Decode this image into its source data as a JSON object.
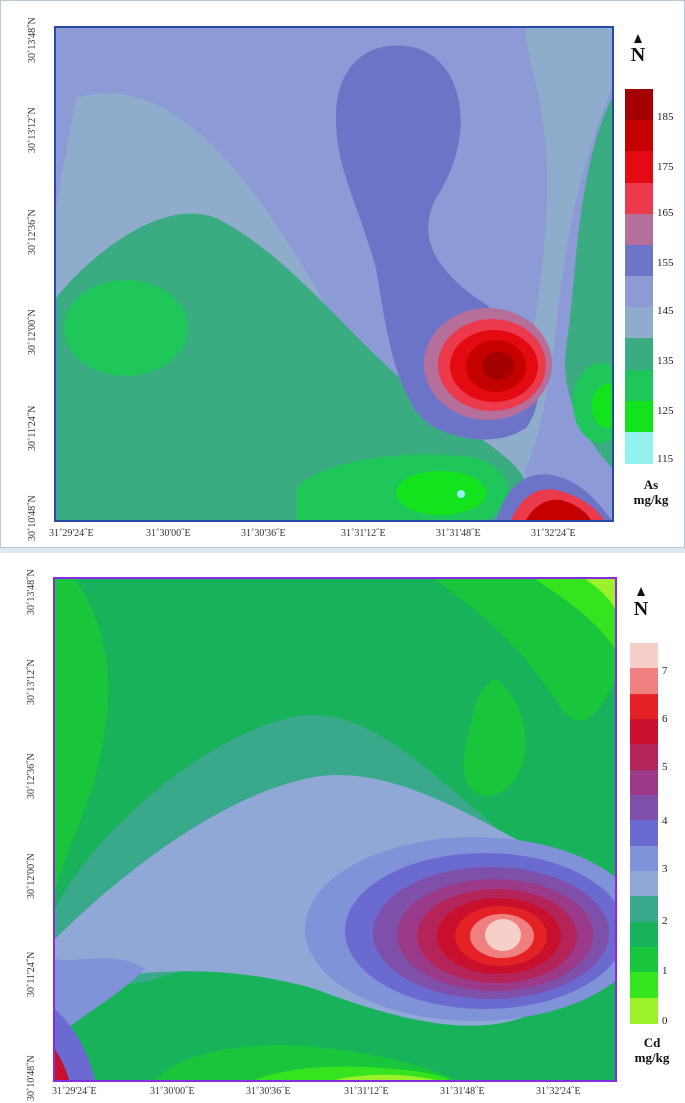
{
  "maps": [
    {
      "element": "As",
      "unit": "mg/kg",
      "north_label": "N",
      "legend_values": [
        "185",
        "175",
        "165",
        "155",
        "145",
        "135",
        "125",
        "115"
      ],
      "legend_colors": [
        "#a50000",
        "#c40000",
        "#e30a12",
        "#ea3a4b",
        "#b66f9a",
        "#6c74c8",
        "#8c9bd6",
        "#8faccc",
        "#3bab82",
        "#1fc65a",
        "#13e31d",
        "#94f3ee"
      ],
      "x_labels": [
        "31˚29'24˝E",
        "31˚30'00˝E",
        "31˚30'36˝E",
        "31˚31'12˝E",
        "31˚31'48˝E",
        "31˚32'24˝E"
      ],
      "y_labels": [
        "30˚13'48˝N",
        "30˚13'12˝N",
        "30˚12'36˝N",
        "30˚12'00˝N",
        "30˚11'24˝N",
        "30˚10'48˝N"
      ]
    },
    {
      "element": "Cd",
      "unit": "mg/kg",
      "north_label": "N",
      "legend_values": [
        "7",
        "6",
        "5",
        "4",
        "3",
        "2",
        "1",
        "0"
      ],
      "legend_colors": [
        "#f6cfc9",
        "#f08080",
        "#e42125",
        "#c8102e",
        "#b42458",
        "#9b3a88",
        "#7e50aa",
        "#6a6ad0",
        "#8092d8",
        "#8fa8d5",
        "#3aa88a",
        "#18b25b",
        "#19c53a",
        "#35e31e",
        "#9bf12a"
      ],
      "x_labels": [
        "31˚29'24˝E",
        "31˚30'00˝E",
        "31˚30'36˝E",
        "31˚31'12˝E",
        "31˚31'48˝E",
        "31˚32'24˝E"
      ],
      "y_labels": [
        "30˚13'48˝N",
        "30˚13'12˝N",
        "30˚12'36˝N",
        "30˚12'00˝N",
        "30˚11'24˝N",
        "30˚10'48˝N"
      ]
    }
  ]
}
